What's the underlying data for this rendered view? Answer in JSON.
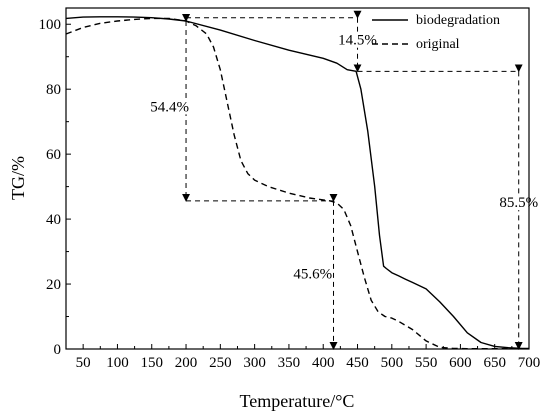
{
  "chart_data": {
    "type": "line",
    "title": "",
    "xlabel": "Temperature/°C",
    "ylabel": "TG/%",
    "xlim": [
      25,
      700
    ],
    "ylim": [
      0,
      105
    ],
    "xticks": [
      50,
      100,
      150,
      200,
      250,
      300,
      350,
      400,
      450,
      500,
      550,
      600,
      650,
      700
    ],
    "yticks": [
      0,
      20,
      40,
      60,
      80,
      100
    ],
    "grid": false,
    "legend_position": "top-right",
    "series": [
      {
        "name": "biodegradation",
        "style": "solid",
        "color": "#000000",
        "x": [
          25,
          50,
          75,
          100,
          125,
          150,
          175,
          200,
          250,
          300,
          350,
          400,
          420,
          435,
          448,
          455,
          465,
          475,
          482,
          488,
          492,
          500,
          510,
          520,
          530,
          550,
          570,
          590,
          610,
          630,
          650,
          670,
          690,
          700
        ],
        "y": [
          101.8,
          102.2,
          102.3,
          102.3,
          102.2,
          102,
          101.6,
          101,
          98.2,
          95,
          92,
          89.5,
          88,
          86,
          85.5,
          80,
          67,
          50,
          35,
          25.5,
          24.8,
          23.5,
          22.5,
          21.5,
          20.5,
          18.5,
          14.5,
          10,
          5,
          2,
          0.8,
          0.4,
          0.2,
          0.2
        ]
      },
      {
        "name": "original",
        "style": "dashed",
        "color": "#000000",
        "x": [
          25,
          50,
          75,
          100,
          125,
          150,
          175,
          200,
          215,
          230,
          240,
          250,
          260,
          270,
          280,
          290,
          300,
          320,
          350,
          380,
          410,
          420,
          430,
          440,
          450,
          460,
          470,
          480,
          490,
          500,
          510,
          530,
          550,
          570,
          590,
          610,
          650,
          700
        ],
        "y": [
          97,
          99,
          100.3,
          101,
          101.5,
          101.8,
          101.8,
          101,
          99.5,
          97,
          93,
          86,
          76,
          66,
          58,
          54,
          52,
          50,
          48,
          46.5,
          45.6,
          45,
          43,
          38,
          30,
          22,
          15,
          11.5,
          10,
          9.5,
          8.5,
          6,
          2.5,
          0.5,
          0.2,
          0.1,
          0.1,
          0.1
        ]
      }
    ],
    "annotations": [
      {
        "label": "14.5%",
        "x0": 450,
        "y0": 102,
        "x1": 450,
        "y1": 85.5,
        "text_x": 450,
        "text_y": 94,
        "text_anchor": "middle"
      },
      {
        "label": "54.4%",
        "x0": 200,
        "y0": 101,
        "x1": 200,
        "y1": 45.6,
        "text_x": 176,
        "text_y": 73.5,
        "text_anchor": "middle"
      },
      {
        "label": "45.6%",
        "x0": 415,
        "y0": 45.6,
        "x1": 415,
        "y1": 0,
        "text_x": 413,
        "text_y": 22,
        "text_anchor": "end"
      },
      {
        "label": "85.5%",
        "x0": 685,
        "y0": 85.5,
        "x1": 685,
        "y1": 0,
        "text_x": 685,
        "text_y": 44,
        "text_anchor": "middle"
      }
    ],
    "guide_lines": [
      {
        "x0": 200,
        "y0": 102,
        "x1": 450,
        "y1": 102
      },
      {
        "x0": 450,
        "y0": 85.5,
        "x1": 685,
        "y1": 85.5
      },
      {
        "x0": 200,
        "y0": 45.6,
        "x1": 415,
        "y1": 45.6
      }
    ]
  }
}
